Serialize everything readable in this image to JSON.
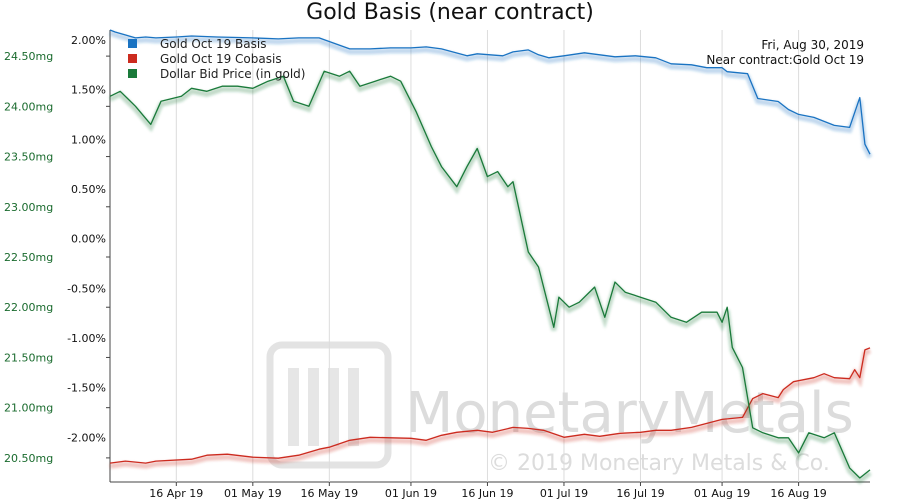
{
  "chart_data": {
    "type": "line",
    "title": "Gold Basis (near contract)",
    "date": "Fri, Aug 30, 2019",
    "near_contract": "Near contract:Gold Oct 19",
    "x_axis": {
      "range": [
        "2019-04-03",
        "2019-08-30"
      ],
      "ticks": [
        {
          "label": "16 Apr 19",
          "date": "2019-04-16"
        },
        {
          "label": "01 May 19",
          "date": "2019-05-01"
        },
        {
          "label": "16 May 19",
          "date": "2019-05-16"
        },
        {
          "label": "01 Jun 19",
          "date": "2019-06-01"
        },
        {
          "label": "16 Jun 19",
          "date": "2019-06-16"
        },
        {
          "label": "01 Jul 19",
          "date": "2019-07-01"
        },
        {
          "label": "16 Jul 19",
          "date": "2019-07-16"
        },
        {
          "label": "01 Aug 19",
          "date": "2019-08-01"
        },
        {
          "label": "16 Aug 19",
          "date": "2019-08-16"
        }
      ]
    },
    "left_axis": {
      "ylim": [
        20.26,
        24.76
      ],
      "ticks": [
        "24.50mg",
        "24.00mg",
        "23.50mg",
        "23.00mg",
        "22.50mg",
        "22.00mg",
        "21.50mg",
        "21.00mg",
        "20.50mg"
      ],
      "color": "#1a6b2e"
    },
    "right_axis": {
      "ylim": [
        -2.45,
        2.1
      ],
      "ticks": [
        "2.00%",
        "1.50%",
        "1.00%",
        "0.50%",
        "0.00%",
        "-0.50%",
        "-1.00%",
        "-1.50%",
        "-2.00%"
      ]
    },
    "series": [
      {
        "name": "Gold Oct 19 Basis",
        "axis": "right",
        "color": "#1a73c2",
        "points": [
          [
            "2019-04-03",
            2.1
          ],
          [
            "2019-04-04",
            2.08
          ],
          [
            "2019-04-08",
            2.02
          ],
          [
            "2019-04-10",
            2.03
          ],
          [
            "2019-04-12",
            2.02
          ],
          [
            "2019-04-16",
            2.03
          ],
          [
            "2019-04-19",
            2.04
          ],
          [
            "2019-04-24",
            2.03
          ],
          [
            "2019-05-01",
            2.02
          ],
          [
            "2019-05-06",
            2.01
          ],
          [
            "2019-05-10",
            2.02
          ],
          [
            "2019-05-14",
            2.02
          ],
          [
            "2019-05-20",
            1.91
          ],
          [
            "2019-05-24",
            1.91
          ],
          [
            "2019-05-28",
            1.92
          ],
          [
            "2019-06-01",
            1.92
          ],
          [
            "2019-06-04",
            1.93
          ],
          [
            "2019-06-07",
            1.91
          ],
          [
            "2019-06-12",
            1.84
          ],
          [
            "2019-06-14",
            1.86
          ],
          [
            "2019-06-19",
            1.84
          ],
          [
            "2019-06-21",
            1.88
          ],
          [
            "2019-06-24",
            1.9
          ],
          [
            "2019-06-26",
            1.85
          ],
          [
            "2019-06-28",
            1.82
          ],
          [
            "2019-07-01",
            1.84
          ],
          [
            "2019-07-05",
            1.87
          ],
          [
            "2019-07-08",
            1.85
          ],
          [
            "2019-07-11",
            1.83
          ],
          [
            "2019-07-15",
            1.84
          ],
          [
            "2019-07-19",
            1.82
          ],
          [
            "2019-07-22",
            1.76
          ],
          [
            "2019-07-26",
            1.75
          ],
          [
            "2019-07-29",
            1.72
          ],
          [
            "2019-08-01",
            1.72
          ],
          [
            "2019-08-02",
            1.68
          ],
          [
            "2019-08-06",
            1.66
          ],
          [
            "2019-08-08",
            1.41
          ],
          [
            "2019-08-12",
            1.38
          ],
          [
            "2019-08-14",
            1.3
          ],
          [
            "2019-08-16",
            1.25
          ],
          [
            "2019-08-19",
            1.22
          ],
          [
            "2019-08-21",
            1.18
          ],
          [
            "2019-08-23",
            1.14
          ],
          [
            "2019-08-26",
            1.12
          ],
          [
            "2019-08-28",
            1.42
          ],
          [
            "2019-08-29",
            0.95
          ],
          [
            "2019-08-30",
            0.85
          ]
        ]
      },
      {
        "name": "Gold Oct 19 Cobasis",
        "axis": "right",
        "color": "#cc2b1f",
        "points": [
          [
            "2019-04-03",
            -2.26
          ],
          [
            "2019-04-06",
            -2.24
          ],
          [
            "2019-04-10",
            -2.26
          ],
          [
            "2019-04-12",
            -2.24
          ],
          [
            "2019-04-19",
            -2.22
          ],
          [
            "2019-04-22",
            -2.18
          ],
          [
            "2019-04-26",
            -2.17
          ],
          [
            "2019-05-01",
            -2.2
          ],
          [
            "2019-05-06",
            -2.21
          ],
          [
            "2019-05-10",
            -2.18
          ],
          [
            "2019-05-14",
            -2.12
          ],
          [
            "2019-05-16",
            -2.1
          ],
          [
            "2019-05-20",
            -2.03
          ],
          [
            "2019-05-24",
            -2.0
          ],
          [
            "2019-06-01",
            -2.01
          ],
          [
            "2019-06-04",
            -2.03
          ],
          [
            "2019-06-07",
            -1.98
          ],
          [
            "2019-06-10",
            -1.95
          ],
          [
            "2019-06-14",
            -1.93
          ],
          [
            "2019-06-17",
            -1.95
          ],
          [
            "2019-06-21",
            -1.9
          ],
          [
            "2019-06-24",
            -1.91
          ],
          [
            "2019-06-27",
            -1.93
          ],
          [
            "2019-07-01",
            -2.0
          ],
          [
            "2019-07-05",
            -1.97
          ],
          [
            "2019-07-08",
            -1.99
          ],
          [
            "2019-07-12",
            -1.96
          ],
          [
            "2019-07-16",
            -1.95
          ],
          [
            "2019-07-19",
            -1.93
          ],
          [
            "2019-07-22",
            -1.93
          ],
          [
            "2019-07-26",
            -1.9
          ],
          [
            "2019-07-29",
            -1.86
          ],
          [
            "2019-08-01",
            -1.82
          ],
          [
            "2019-08-05",
            -1.8
          ],
          [
            "2019-08-07",
            -1.61
          ],
          [
            "2019-08-09",
            -1.56
          ],
          [
            "2019-08-12",
            -1.6
          ],
          [
            "2019-08-13",
            -1.52
          ],
          [
            "2019-08-15",
            -1.44
          ],
          [
            "2019-08-19",
            -1.4
          ],
          [
            "2019-08-21",
            -1.36
          ],
          [
            "2019-08-23",
            -1.4
          ],
          [
            "2019-08-26",
            -1.41
          ],
          [
            "2019-08-27",
            -1.32
          ],
          [
            "2019-08-28",
            -1.4
          ],
          [
            "2019-08-29",
            -1.12
          ],
          [
            "2019-08-30",
            -1.1
          ]
        ]
      },
      {
        "name": "Dollar Bid Price (in gold)",
        "axis": "left",
        "color": "#1a7a3a",
        "points": [
          [
            "2019-04-03",
            24.1
          ],
          [
            "2019-04-05",
            24.15
          ],
          [
            "2019-04-08",
            24.0
          ],
          [
            "2019-04-10",
            23.88
          ],
          [
            "2019-04-11",
            23.82
          ],
          [
            "2019-04-13",
            24.05
          ],
          [
            "2019-04-17",
            24.1
          ],
          [
            "2019-04-19",
            24.18
          ],
          [
            "2019-04-22",
            24.15
          ],
          [
            "2019-04-25",
            24.2
          ],
          [
            "2019-04-28",
            24.2
          ],
          [
            "2019-05-01",
            24.18
          ],
          [
            "2019-05-04",
            24.25
          ],
          [
            "2019-05-07",
            24.3
          ],
          [
            "2019-05-09",
            24.05
          ],
          [
            "2019-05-12",
            24.0
          ],
          [
            "2019-05-15",
            24.35
          ],
          [
            "2019-05-18",
            24.3
          ],
          [
            "2019-05-20",
            24.35
          ],
          [
            "2019-05-22",
            24.2
          ],
          [
            "2019-05-25",
            24.25
          ],
          [
            "2019-05-28",
            24.3
          ],
          [
            "2019-05-30",
            24.25
          ],
          [
            "2019-06-02",
            23.95
          ],
          [
            "2019-06-05",
            23.6
          ],
          [
            "2019-06-07",
            23.4
          ],
          [
            "2019-06-10",
            23.2
          ],
          [
            "2019-06-12",
            23.4
          ],
          [
            "2019-06-14",
            23.58
          ],
          [
            "2019-06-16",
            23.3
          ],
          [
            "2019-06-18",
            23.35
          ],
          [
            "2019-06-20",
            23.2
          ],
          [
            "2019-06-21",
            23.25
          ],
          [
            "2019-06-24",
            22.55
          ],
          [
            "2019-06-26",
            22.4
          ],
          [
            "2019-06-28",
            22.0
          ],
          [
            "2019-06-29",
            21.8
          ],
          [
            "2019-06-30",
            22.1
          ],
          [
            "2019-07-02",
            22.0
          ],
          [
            "2019-07-04",
            22.05
          ],
          [
            "2019-07-07",
            22.2
          ],
          [
            "2019-07-09",
            21.9
          ],
          [
            "2019-07-11",
            22.25
          ],
          [
            "2019-07-13",
            22.15
          ],
          [
            "2019-07-16",
            22.1
          ],
          [
            "2019-07-19",
            22.05
          ],
          [
            "2019-07-22",
            21.9
          ],
          [
            "2019-07-25",
            21.85
          ],
          [
            "2019-07-28",
            21.95
          ],
          [
            "2019-07-31",
            21.95
          ],
          [
            "2019-08-01",
            21.85
          ],
          [
            "2019-08-02",
            22.0
          ],
          [
            "2019-08-03",
            21.6
          ],
          [
            "2019-08-05",
            21.4
          ],
          [
            "2019-08-07",
            20.8
          ],
          [
            "2019-08-09",
            20.75
          ],
          [
            "2019-08-12",
            20.7
          ],
          [
            "2019-08-14",
            20.7
          ],
          [
            "2019-08-16",
            20.55
          ],
          [
            "2019-08-18",
            20.75
          ],
          [
            "2019-08-21",
            20.7
          ],
          [
            "2019-08-23",
            20.75
          ],
          [
            "2019-08-26",
            20.4
          ],
          [
            "2019-08-28",
            20.3
          ],
          [
            "2019-08-30",
            20.38
          ]
        ]
      }
    ],
    "legend": {
      "position": "top-left"
    }
  },
  "watermark": {
    "brand": "MonetaryMetals",
    "copyright": "© 2019 Monetary Metals & Co."
  }
}
